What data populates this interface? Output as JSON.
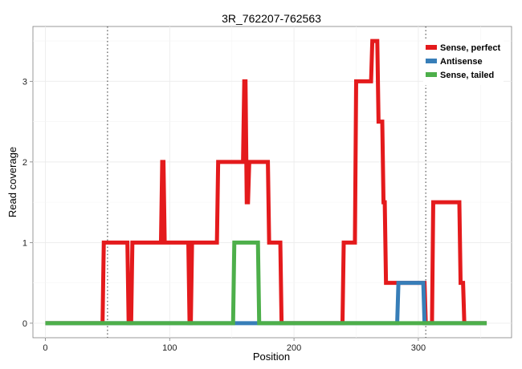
{
  "chart_data": {
    "type": "line",
    "title": "3R_762207-762563",
    "xlabel": "Position",
    "ylabel": "Read coverage",
    "xlim": [
      -10,
      375
    ],
    "ylim": [
      -0.18,
      3.68
    ],
    "xticks": [
      0,
      100,
      200,
      300
    ],
    "yticks": [
      0,
      1,
      2,
      3
    ],
    "grid": true,
    "legend_position": "top-right",
    "vlines": [
      50,
      306
    ],
    "colors": {
      "Sense, perfect": "#E41A1C",
      "Antisense": "#377EB8",
      "Sense, tailed": "#4DAF4A"
    },
    "series": [
      {
        "name": "Sense, perfect",
        "x": [
          0,
          46,
          47,
          66,
          67,
          69,
          70,
          93,
          94,
          95,
          96,
          115,
          116,
          117,
          118,
          138,
          139,
          159,
          160,
          161,
          162,
          163,
          164,
          165,
          179,
          180,
          189,
          190,
          239,
          240,
          249,
          250,
          262,
          263,
          267,
          268,
          271,
          272,
          273,
          274,
          284,
          285,
          305,
          306,
          311,
          312,
          333,
          334,
          336,
          337,
          355
        ],
        "y": [
          0,
          0,
          1,
          1,
          0,
          0,
          1,
          1,
          2,
          2,
          1,
          1,
          0,
          0,
          1,
          1,
          2,
          2,
          3,
          3,
          1.5,
          1.5,
          2,
          2,
          2,
          1,
          1,
          0,
          0,
          1,
          1,
          3,
          3,
          3.5,
          3.5,
          2.5,
          2.5,
          1.5,
          1.5,
          0.5,
          0.5,
          0.5,
          0.5,
          0,
          0,
          1.5,
          1.5,
          0.5,
          0.5,
          0,
          0
        ]
      },
      {
        "name": "Antisense",
        "x": [
          0,
          283,
          284,
          304,
          305,
          355
        ],
        "y": [
          0,
          0,
          0.5,
          0.5,
          0,
          0
        ]
      },
      {
        "name": "Sense, tailed",
        "x": [
          0,
          151,
          152,
          171,
          172,
          355
        ],
        "y": [
          0,
          0,
          1,
          1,
          0,
          0
        ]
      }
    ]
  }
}
